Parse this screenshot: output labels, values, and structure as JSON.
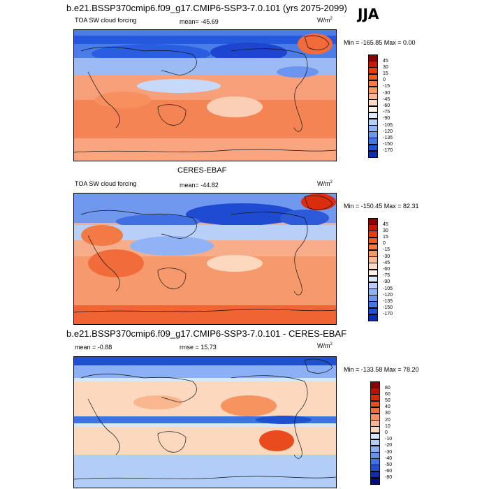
{
  "header": {
    "case_title": "b.e21.BSSP370cmip6.f09_g17.CMIP6-SSP3-7.0.101 (yrs 2075-2099)",
    "season": "JJA"
  },
  "panels": [
    {
      "title": "",
      "left_label": "TOA SW cloud forcing",
      "center_label": "mean= -45.69",
      "right_label": "W/m",
      "right_sup": "2",
      "minmax": "Min = -165.85 Max =   0.00",
      "levels": [
        "45",
        "30",
        "15",
        "0",
        "-15",
        "-30",
        "-45",
        "-60",
        "-75",
        "-90",
        "-105",
        "-120",
        "-135",
        "-150",
        "-170"
      ],
      "colors": [
        "#8b0000",
        "#c61a09",
        "#e33d12",
        "#f05a25",
        "#f47a45",
        "#f79766",
        "#f9b794",
        "#fcd9c3",
        "#fdf0e6",
        "#ddeafd",
        "#b6cffa",
        "#8fb3f5",
        "#6b95ee",
        "#4476e6",
        "#1e55d6",
        "#0a2fa8"
      ]
    },
    {
      "title": "CERES-EBAF",
      "left_label": "TOA SW cloud forcing",
      "center_label": "mean= -44.82",
      "right_label": "W/m",
      "right_sup": "2",
      "minmax": "Min = -150.45 Max =  82.31",
      "levels": [
        "45",
        "30",
        "15",
        "0",
        "-15",
        "-30",
        "-45",
        "-60",
        "-75",
        "-90",
        "-105",
        "-120",
        "-135",
        "-150",
        "-170"
      ],
      "colors": [
        "#8b0000",
        "#c61a09",
        "#e33d12",
        "#f05a25",
        "#f47a45",
        "#f79766",
        "#f9b794",
        "#fcd9c3",
        "#fdf0e6",
        "#ddeafd",
        "#b6cffa",
        "#8fb3f5",
        "#6b95ee",
        "#4476e6",
        "#1e55d6",
        "#0a2fa8"
      ]
    },
    {
      "title": "b.e21.BSSP370cmip6.f09_g17.CMIP6-SSP3-7.0.101 - CERES-EBAF",
      "left_label": "mean =  -0.88",
      "center_label": "rmse =  15.73",
      "right_label": "W/m",
      "right_sup": "2",
      "minmax": "Min = -133.58 Max =  78.20",
      "levels": [
        "80",
        "60",
        "50",
        "40",
        "30",
        "20",
        "10",
        "0",
        "-10",
        "-20",
        "-30",
        "-40",
        "-50",
        "-60",
        "-80"
      ],
      "colors": [
        "#8b0000",
        "#b51405",
        "#d52a0c",
        "#ea4b1d",
        "#f26e3b",
        "#f7935f",
        "#fab68c",
        "#fcd8bf",
        "#d6e6fb",
        "#b2cdf8",
        "#8bb0f3",
        "#6692ec",
        "#3f72e2",
        "#1e50cf",
        "#0a2fa8",
        "#001070"
      ]
    }
  ],
  "chart_data": [
    {
      "type": "heatmap",
      "title": "b.e21.BSSP370cmip6.f09_g17.CMIP6-SSP3-7.0.101 (yrs 2075-2099)",
      "variable": "TOA SW cloud forcing",
      "units": "W/m2",
      "mean": -45.69,
      "min": -165.85,
      "max": 0.0,
      "colorbar_levels": [
        45,
        30,
        15,
        0,
        -15,
        -30,
        -45,
        -60,
        -75,
        -90,
        -105,
        -120,
        -135,
        -150,
        -170
      ]
    },
    {
      "type": "heatmap",
      "title": "CERES-EBAF",
      "variable": "TOA SW cloud forcing",
      "units": "W/m2",
      "mean": -44.82,
      "min": -150.45,
      "max": 82.31,
      "colorbar_levels": [
        45,
        30,
        15,
        0,
        -15,
        -30,
        -45,
        -60,
        -75,
        -90,
        -105,
        -120,
        -135,
        -150,
        -170
      ]
    },
    {
      "type": "heatmap",
      "title": "b.e21.BSSP370cmip6.f09_g17.CMIP6-SSP3-7.0.101 - CERES-EBAF",
      "units": "W/m2",
      "mean": -0.88,
      "rmse": 15.73,
      "min": -133.58,
      "max": 78.2,
      "colorbar_levels": [
        80,
        60,
        50,
        40,
        30,
        20,
        10,
        0,
        -10,
        -20,
        -30,
        -40,
        -50,
        -60,
        -80
      ]
    }
  ]
}
